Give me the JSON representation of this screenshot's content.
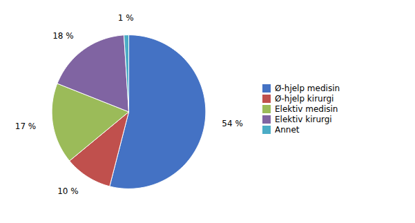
{
  "chart_data": {
    "type": "pie",
    "categories": [
      "Ø-hjelp medisin",
      "Ø-hjelp kirurgi",
      "Elektiv medisin",
      "Elektiv kirurgi",
      "Annet"
    ],
    "values": [
      54,
      10,
      17,
      18,
      1
    ],
    "value_labels": [
      "54 %",
      "10 %",
      "17 %",
      "18 %",
      "1 %"
    ],
    "colors": [
      "#4472C4",
      "#C0504D",
      "#9BBB59",
      "#8064A2",
      "#4BACC6"
    ],
    "data_labels": true,
    "legend": "right"
  }
}
